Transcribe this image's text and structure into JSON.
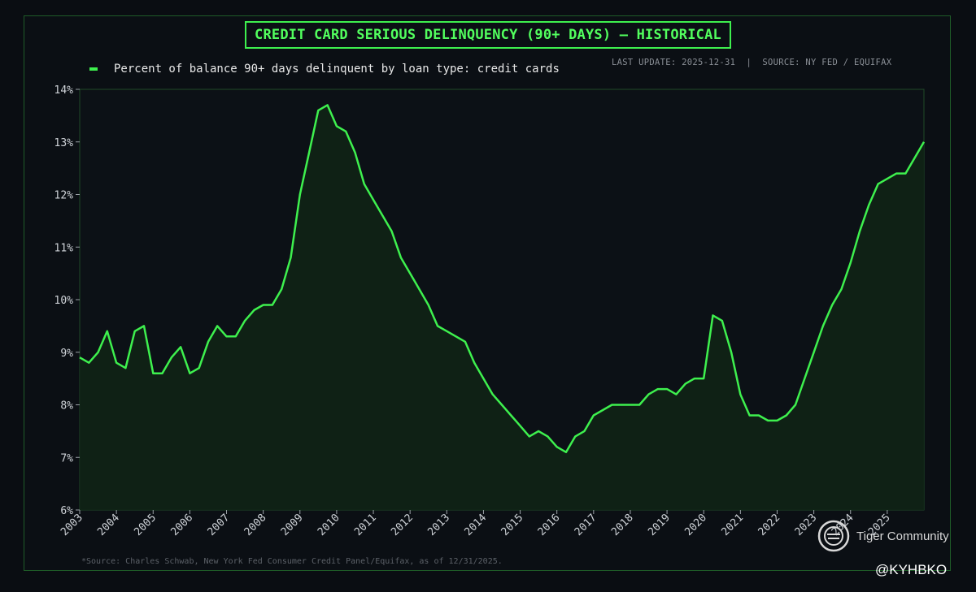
{
  "chart_data": {
    "type": "line",
    "title": "CREDIT CARD SERIOUS DELINQUENCY (90+ DAYS) — HISTORICAL",
    "legend": {
      "placement": "top-left",
      "label": "Percent of balance 90+ days delinquent by loan type: credit cards"
    },
    "update_info": "LAST UPDATE: 2025-12-31  |  SOURCE: NY FED / EQUIFAX",
    "footnote": "*Source: Charles Schwab, New York Fed Consumer Credit Panel/Equifax, as of 12/31/2025.",
    "line_color": "#3ef04e",
    "fill_color": "#0f2415",
    "grid": false,
    "ylim": [
      6,
      14
    ],
    "xlim": [
      2003,
      2026
    ],
    "yticks": [
      6,
      7,
      8,
      9,
      10,
      11,
      12,
      13,
      14
    ],
    "ytick_labels": [
      "6%",
      "7%",
      "8%",
      "9%",
      "10%",
      "11%",
      "12%",
      "13%",
      "14%"
    ],
    "xticks": [
      2003,
      2004,
      2005,
      2006,
      2007,
      2008,
      2009,
      2010,
      2011,
      2012,
      2013,
      2014,
      2015,
      2016,
      2017,
      2018,
      2019,
      2020,
      2021,
      2022,
      2023,
      2024,
      2025
    ],
    "xtick_labels": [
      "2003",
      "2004",
      "2005",
      "2006",
      "2007",
      "2008",
      "2009",
      "2010",
      "2011",
      "2012",
      "2013",
      "2014",
      "2015",
      "2016",
      "2017",
      "2018",
      "2019",
      "2020",
      "2021",
      "2022",
      "2023",
      "2024",
      "2025"
    ],
    "series": [
      {
        "x": [
          2003.0,
          2003.25,
          2003.5,
          2003.75,
          2004.0,
          2004.25,
          2004.5,
          2004.75,
          2005.0,
          2005.25,
          2005.5,
          2005.75,
          2006.0,
          2006.25,
          2006.5,
          2006.75,
          2007.0,
          2007.25,
          2007.5,
          2007.75,
          2008.0,
          2008.25,
          2008.5,
          2008.75,
          2009.0,
          2009.25,
          2009.5,
          2009.75,
          2010.0,
          2010.25,
          2010.5,
          2010.75,
          2011.0,
          2011.25,
          2011.5,
          2011.75,
          2012.0,
          2012.25,
          2012.5,
          2012.75,
          2013.0,
          2013.25,
          2013.5,
          2013.75,
          2014.0,
          2014.25,
          2014.5,
          2014.75,
          2015.0,
          2015.25,
          2015.5,
          2015.75,
          2016.0,
          2016.25,
          2016.5,
          2016.75,
          2017.0,
          2017.25,
          2017.5,
          2017.75,
          2018.0,
          2018.25,
          2018.5,
          2018.75,
          2019.0,
          2019.25,
          2019.5,
          2019.75,
          2020.0,
          2020.25,
          2020.5,
          2020.75,
          2021.0,
          2021.25,
          2021.5,
          2021.75,
          2022.0,
          2022.25,
          2022.5,
          2022.75,
          2023.0,
          2023.25,
          2023.5,
          2023.75,
          2024.0,
          2024.25,
          2024.5,
          2024.75,
          2025.0,
          2025.25,
          2025.5,
          2025.75,
          2026.0
        ],
        "y": [
          8.9,
          8.8,
          9.0,
          9.4,
          8.8,
          8.7,
          9.4,
          9.5,
          8.6,
          8.6,
          8.9,
          9.1,
          8.6,
          8.7,
          9.2,
          9.5,
          9.3,
          9.3,
          9.6,
          9.8,
          9.9,
          9.9,
          10.2,
          10.8,
          12.0,
          12.8,
          13.6,
          13.7,
          13.3,
          13.2,
          12.8,
          12.2,
          11.9,
          11.6,
          11.3,
          10.8,
          10.5,
          10.2,
          9.9,
          9.5,
          9.4,
          9.3,
          9.2,
          8.8,
          8.5,
          8.2,
          8.0,
          7.8,
          7.6,
          7.4,
          7.5,
          7.4,
          7.2,
          7.1,
          7.4,
          7.5,
          7.8,
          7.9,
          8.0,
          8.0,
          8.0,
          8.0,
          8.2,
          8.3,
          8.3,
          8.2,
          8.4,
          8.5,
          8.5,
          9.7,
          9.6,
          9.0,
          8.2,
          7.8,
          7.8,
          7.7,
          7.7,
          7.8,
          8.0,
          8.5,
          9.0,
          9.5,
          9.9,
          10.2,
          10.7,
          11.3,
          11.8,
          12.2,
          12.3,
          12.4,
          12.4,
          12.7,
          13.0
        ]
      }
    ]
  },
  "watermark": {
    "text": "Tiger Community",
    "icon": "tiger-logo-icon"
  },
  "handle": "@KYHBKO"
}
